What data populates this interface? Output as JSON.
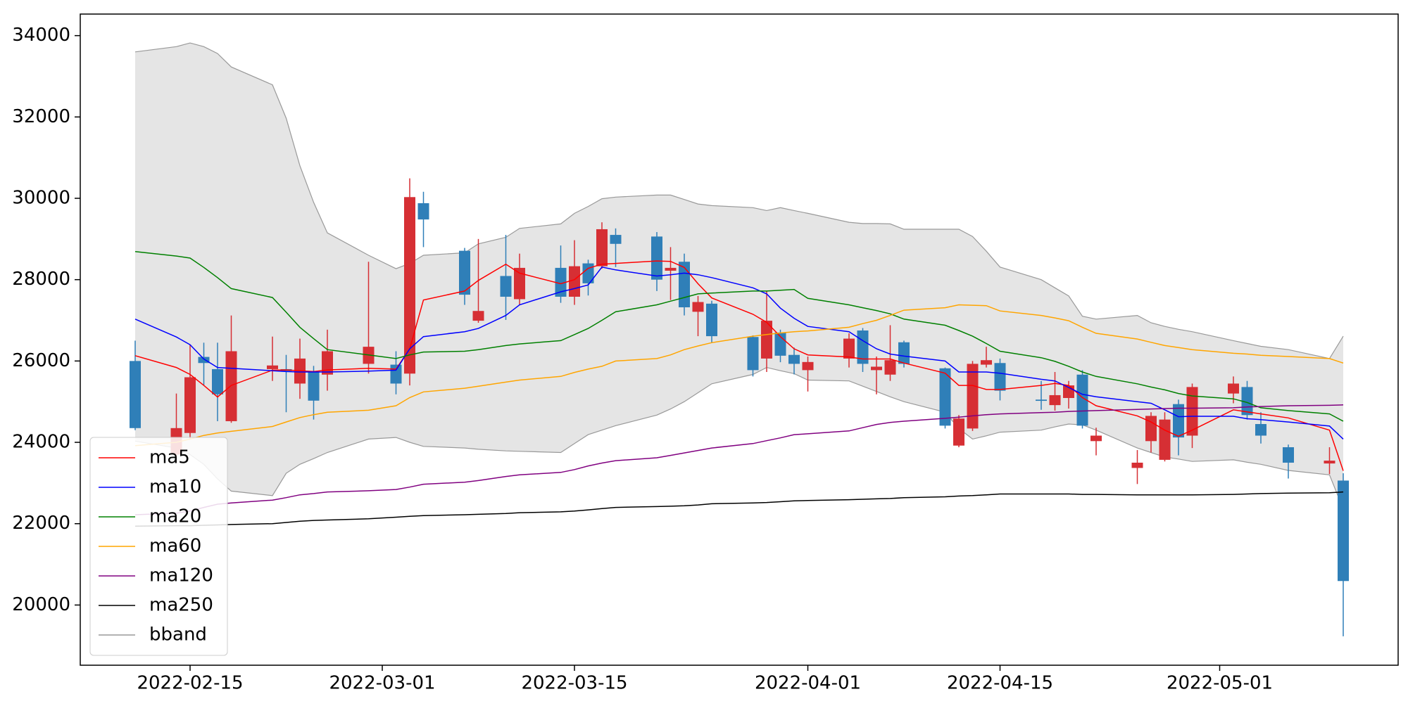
{
  "chart_data": {
    "type": "candlestick",
    "x": [
      "2022-02-11",
      "2022-02-14",
      "2022-02-15",
      "2022-02-16",
      "2022-02-17",
      "2022-02-18",
      "2022-02-21",
      "2022-02-22",
      "2022-02-23",
      "2022-02-24",
      "2022-02-25",
      "2022-02-28",
      "2022-03-02",
      "2022-03-03",
      "2022-03-04",
      "2022-03-07",
      "2022-03-08",
      "2022-03-10",
      "2022-03-11",
      "2022-03-14",
      "2022-03-15",
      "2022-03-16",
      "2022-03-17",
      "2022-03-18",
      "2022-03-21",
      "2022-03-22",
      "2022-03-23",
      "2022-03-24",
      "2022-03-25",
      "2022-03-28",
      "2022-03-29",
      "2022-03-30",
      "2022-03-31",
      "2022-04-01",
      "2022-04-04",
      "2022-04-05",
      "2022-04-06",
      "2022-04-07",
      "2022-04-08",
      "2022-04-11",
      "2022-04-12",
      "2022-04-13",
      "2022-04-14",
      "2022-04-15",
      "2022-04-18",
      "2022-04-19",
      "2022-04-20",
      "2022-04-21",
      "2022-04-22",
      "2022-04-25",
      "2022-04-26",
      "2022-04-27",
      "2022-04-28",
      "2022-04-29",
      "2022-05-02",
      "2022-05-03",
      "2022-05-04",
      "2022-05-06",
      "2022-05-09",
      "2022-05-10"
    ],
    "open": [
      26000,
      23700,
      24230,
      26100,
      25800,
      24520,
      25800,
      25800,
      25445,
      25730,
      25665,
      25930,
      25910,
      25690,
      29880,
      28710,
      26990,
      28090,
      27520,
      28290,
      27580,
      28400,
      28330,
      29100,
      29060,
      28220,
      28440,
      27210,
      27410,
      26590,
      26060,
      26700,
      26150,
      25775,
      26060,
      26750,
      25775,
      25665,
      26460,
      25820,
      23920,
      24340,
      25910,
      25950,
      25050,
      24915,
      25090,
      25665,
      24030,
      23370,
      24030,
      23570,
      24940,
      24165,
      25200,
      25360,
      24450,
      23880,
      23480,
      23060
    ],
    "high": [
      26500,
      25200,
      26400,
      26450,
      26450,
      27120,
      26600,
      26150,
      26550,
      25880,
      26770,
      28440,
      26240,
      30490,
      30160,
      28780,
      29000,
      29100,
      28640,
      28840,
      28970,
      28490,
      29410,
      29260,
      29170,
      28800,
      28640,
      27600,
      27480,
      26630,
      27720,
      26770,
      26330,
      26110,
      26680,
      26810,
      26110,
      26880,
      26500,
      25840,
      24670,
      26000,
      26350,
      26060,
      25510,
      25730,
      25510,
      25775,
      24360,
      23810,
      24740,
      24740,
      25050,
      25445,
      25620,
      25510,
      24740,
      23945,
      23880,
      23240
    ],
    "low": [
      24300,
      23500,
      24080,
      25400,
      24520,
      24480,
      25510,
      24740,
      25070,
      24560,
      25270,
      25690,
      25180,
      25400,
      28800,
      27380,
      26940,
      27010,
      27380,
      27430,
      27380,
      27610,
      28270,
      28310,
      27720,
      27500,
      27120,
      26610,
      26440,
      25620,
      25730,
      25970,
      25670,
      25250,
      25840,
      25730,
      25180,
      25510,
      25840,
      24340,
      23880,
      24280,
      25840,
      25030,
      24800,
      24780,
      24830,
      24340,
      23680,
      22975,
      23750,
      23530,
      23680,
      23860,
      24960,
      24560,
      23970,
      23110,
      23220,
      19230
    ],
    "close": [
      24350,
      24350,
      25600,
      25950,
      25180,
      26240,
      25890,
      25750,
      26060,
      25025,
      26240,
      26350,
      25445,
      30030,
      29480,
      27630,
      27230,
      27580,
      28290,
      27580,
      28330,
      27910,
      29240,
      28880,
      28000,
      28290,
      27320,
      27450,
      26610,
      25775,
      26990,
      26130,
      25930,
      25975,
      26550,
      25930,
      25860,
      26020,
      25930,
      24410,
      24585,
      25930,
      26020,
      25270,
      25020,
      25160,
      25400,
      24410,
      24165,
      23500,
      24650,
      24560,
      24120,
      25360,
      25445,
      24670,
      24165,
      23500,
      23550,
      20590
    ],
    "up_color": "#d62f34",
    "down_color": "#2f7fb8",
    "series": [
      {
        "name": "ma5",
        "color": "#ff0000",
        "values": [
          26130,
          25840,
          25670,
          25400,
          25115,
          25400,
          25775,
          25780,
          25760,
          25740,
          25780,
          25820,
          25800,
          26300,
          27500,
          27720,
          27980,
          28380,
          28160,
          27900,
          28000,
          28280,
          28380,
          28400,
          28460,
          28450,
          28300,
          27900,
          27550,
          27150,
          26950,
          26600,
          26300,
          26150,
          26100,
          26050,
          26050,
          26050,
          25950,
          25700,
          25400,
          25400,
          25300,
          25300,
          25400,
          25450,
          25400,
          25100,
          24900,
          24650,
          24500,
          24300,
          24150,
          24300,
          24800,
          24750,
          24700,
          24600,
          24300,
          23300
        ]
      },
      {
        "name": "ma10",
        "color": "#0000ff",
        "values": [
          27030,
          26590,
          26400,
          26050,
          25840,
          25820,
          25760,
          25740,
          25730,
          25730,
          25730,
          25750,
          25775,
          26300,
          26600,
          26720,
          26800,
          27120,
          27380,
          27700,
          27780,
          27870,
          28310,
          28240,
          28090,
          28120,
          28160,
          28120,
          28050,
          27800,
          27650,
          27300,
          27050,
          26850,
          26720,
          26500,
          26300,
          26170,
          26120,
          26000,
          25730,
          25730,
          25730,
          25700,
          25550,
          25510,
          25350,
          25180,
          25120,
          25000,
          24960,
          24800,
          24630,
          24640,
          24640,
          24580,
          24560,
          24500,
          24400,
          24080
        ]
      },
      {
        "name": "ma20",
        "color": "#008000",
        "values": [
          28690,
          28580,
          28530,
          28300,
          28050,
          27780,
          27560,
          27200,
          26830,
          26550,
          26280,
          26150,
          26060,
          26150,
          26220,
          26240,
          26280,
          26380,
          26420,
          26500,
          26650,
          26800,
          27000,
          27210,
          27380,
          27470,
          27560,
          27650,
          27670,
          27720,
          27720,
          27740,
          27760,
          27540,
          27380,
          27310,
          27240,
          27160,
          27030,
          26880,
          26750,
          26610,
          26430,
          26240,
          26080,
          25990,
          25870,
          25730,
          25620,
          25440,
          25360,
          25290,
          25200,
          25140,
          25070,
          24980,
          24850,
          24780,
          24700,
          24520
        ]
      },
      {
        "name": "ma60",
        "color": "#ffa500",
        "values": [
          23920,
          24000,
          24080,
          24170,
          24230,
          24270,
          24390,
          24500,
          24610,
          24680,
          24740,
          24790,
          24900,
          25100,
          25240,
          25330,
          25380,
          25480,
          25530,
          25620,
          25720,
          25800,
          25870,
          26000,
          26060,
          26150,
          26280,
          26370,
          26450,
          26610,
          26650,
          26690,
          26720,
          26740,
          26830,
          26920,
          27000,
          27120,
          27250,
          27310,
          27380,
          27370,
          27360,
          27230,
          27120,
          27060,
          26990,
          26830,
          26680,
          26540,
          26460,
          26380,
          26330,
          26280,
          26190,
          26170,
          26140,
          26110,
          26060,
          25950
        ]
      },
      {
        "name": "ma120",
        "color": "#800080",
        "values": [
          22220,
          22260,
          22310,
          22400,
          22480,
          22510,
          22580,
          22640,
          22710,
          22740,
          22780,
          22810,
          22840,
          22900,
          22970,
          23020,
          23060,
          23160,
          23200,
          23260,
          23330,
          23420,
          23490,
          23550,
          23620,
          23680,
          23740,
          23800,
          23860,
          23970,
          24040,
          24110,
          24190,
          24210,
          24280,
          24360,
          24440,
          24490,
          24520,
          24590,
          24620,
          24650,
          24680,
          24700,
          24730,
          24740,
          24760,
          24770,
          24780,
          24810,
          24820,
          24830,
          24840,
          24840,
          24850,
          24870,
          24880,
          24900,
          24910,
          24920
        ]
      },
      {
        "name": "ma250",
        "color": "#000000",
        "values": [
          21940,
          21950,
          21950,
          21960,
          21970,
          21980,
          22000,
          22030,
          22060,
          22080,
          22090,
          22120,
          22160,
          22180,
          22200,
          22220,
          22230,
          22250,
          22270,
          22290,
          22310,
          22340,
          22370,
          22400,
          22420,
          22430,
          22440,
          22460,
          22490,
          22510,
          22520,
          22540,
          22560,
          22570,
          22590,
          22600,
          22610,
          22620,
          22640,
          22660,
          22680,
          22690,
          22710,
          22730,
          22730,
          22730,
          22730,
          22720,
          22720,
          22710,
          22710,
          22710,
          22710,
          22710,
          22720,
          22730,
          22740,
          22750,
          22760,
          22780
        ]
      }
    ],
    "band": {
      "name": "bband",
      "color": "#999999",
      "fill": "#e5e5e5",
      "upper": [
        33600,
        33730,
        33820,
        33730,
        33560,
        33230,
        32790,
        31970,
        30800,
        29900,
        29150,
        28600,
        28270,
        28400,
        28600,
        28660,
        28880,
        29040,
        29260,
        29370,
        29630,
        29800,
        29990,
        30030,
        30080,
        30080,
        29970,
        29860,
        29820,
        29770,
        29700,
        29770,
        29700,
        29630,
        29410,
        29380,
        29380,
        29370,
        29240,
        29240,
        29240,
        29060,
        28700,
        28310,
        28000,
        27800,
        27600,
        27100,
        27030,
        27120,
        26940,
        26850,
        26780,
        26720,
        26500,
        26430,
        26360,
        26280,
        26060,
        26610
      ],
      "lower": [
        24030,
        23860,
        23700,
        23460,
        23100,
        22800,
        22690,
        23240,
        23460,
        23600,
        23750,
        24080,
        24120,
        24000,
        23900,
        23860,
        23830,
        23790,
        23780,
        23750,
        23970,
        24190,
        24300,
        24410,
        24670,
        24820,
        25000,
        25220,
        25440,
        25670,
        25840,
        25760,
        25690,
        25530,
        25510,
        25380,
        25250,
        25120,
        25000,
        24740,
        24340,
        24080,
        24160,
        24250,
        24300,
        24380,
        24450,
        24430,
        24300,
        23860,
        23750,
        23640,
        23590,
        23530,
        23570,
        23510,
        23460,
        23310,
        23200,
        22360
      ]
    },
    "xlim": [
      "2022-02-07",
      "2022-05-14"
    ],
    "xticks": [
      "2022-02-15",
      "2022-03-01",
      "2022-03-15",
      "2022-04-01",
      "2022-04-15",
      "2022-05-01"
    ],
    "ylim": [
      18520,
      34530
    ],
    "yticks": [
      20000,
      22000,
      24000,
      26000,
      28000,
      30000,
      32000,
      34000
    ],
    "legend": "lower left"
  }
}
